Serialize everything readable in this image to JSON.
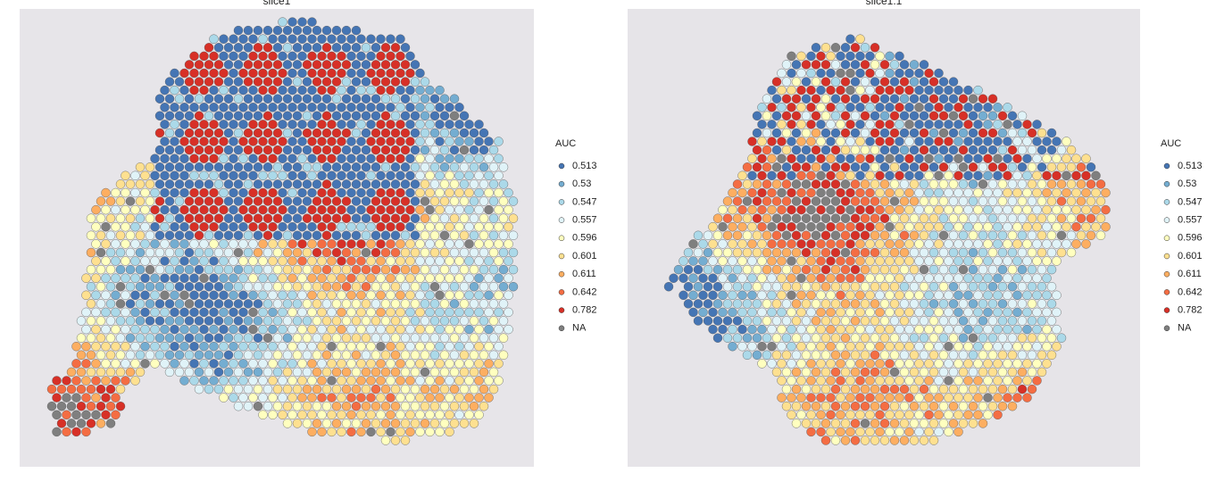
{
  "panels": [
    {
      "title": "slice1"
    },
    {
      "title": "slice1.1"
    }
  ],
  "legend": {
    "title": "AUC",
    "entries": [
      {
        "label": "0.513",
        "color": "#4575b4"
      },
      {
        "label": "0.53",
        "color": "#74add1"
      },
      {
        "label": "0.547",
        "color": "#abd9e9"
      },
      {
        "label": "0.557",
        "color": "#e0f3f8"
      },
      {
        "label": "0.596",
        "color": "#ffffbf"
      },
      {
        "label": "0.601",
        "color": "#fee090"
      },
      {
        "label": "0.611",
        "color": "#fdae61"
      },
      {
        "label": "0.642",
        "color": "#f46d43"
      },
      {
        "label": "0.782",
        "color": "#d73027"
      },
      {
        "label": "NA",
        "color": "#7f7f7f"
      }
    ]
  }
}
